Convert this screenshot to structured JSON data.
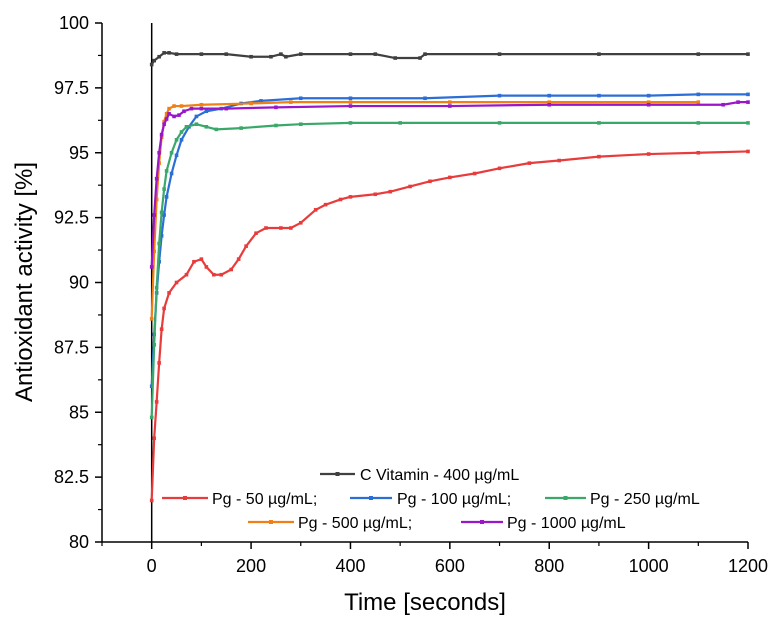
{
  "chart_data": {
    "type": "line",
    "title": "",
    "xlabel": "Time [seconds]",
    "ylabel": "Antioxidant activity [%]",
    "xlim": [
      -100,
      1200
    ],
    "ylim": [
      80,
      100
    ],
    "x_ticks": [
      0,
      200,
      400,
      600,
      800,
      1000,
      1200
    ],
    "y_ticks": [
      80,
      82.5,
      85,
      87.5,
      90,
      92.5,
      95,
      97.5,
      100
    ],
    "x_tick_labels": [
      "0",
      "200",
      "400",
      "600",
      "800",
      "1000",
      "1200"
    ],
    "y_tick_labels": [
      "80",
      "82.5",
      "85",
      "87.5",
      "90",
      "92.5",
      "95",
      "97.5",
      "100"
    ],
    "grid": false,
    "legend_position": "bottom",
    "series": [
      {
        "name": "C Vitamin - 400 µg/mL",
        "color": "#404040",
        "points": [
          [
            0,
            98.4
          ],
          [
            5,
            98.55
          ],
          [
            15,
            98.7
          ],
          [
            25,
            98.85
          ],
          [
            35,
            98.85
          ],
          [
            50,
            98.8
          ],
          [
            100,
            98.8
          ],
          [
            150,
            98.8
          ],
          [
            200,
            98.7
          ],
          [
            240,
            98.7
          ],
          [
            260,
            98.8
          ],
          [
            270,
            98.7
          ],
          [
            300,
            98.8
          ],
          [
            400,
            98.8
          ],
          [
            450,
            98.8
          ],
          [
            490,
            98.65
          ],
          [
            540,
            98.65
          ],
          [
            550,
            98.8
          ],
          [
            700,
            98.8
          ],
          [
            900,
            98.8
          ],
          [
            1100,
            98.8
          ],
          [
            1200,
            98.8
          ]
        ]
      },
      {
        "name": "Pg - 50 µg/mL;",
        "color": "#e83c3c",
        "points": [
          [
            0,
            81.6
          ],
          [
            5,
            84
          ],
          [
            10,
            85.4
          ],
          [
            15,
            86.9
          ],
          [
            20,
            88.2
          ],
          [
            25,
            89.0
          ],
          [
            35,
            89.6
          ],
          [
            50,
            90.0
          ],
          [
            70,
            90.3
          ],
          [
            85,
            90.8
          ],
          [
            100,
            90.9
          ],
          [
            110,
            90.6
          ],
          [
            125,
            90.3
          ],
          [
            140,
            90.3
          ],
          [
            160,
            90.5
          ],
          [
            175,
            90.9
          ],
          [
            190,
            91.4
          ],
          [
            210,
            91.9
          ],
          [
            230,
            92.1
          ],
          [
            260,
            92.1
          ],
          [
            280,
            92.1
          ],
          [
            300,
            92.3
          ],
          [
            330,
            92.8
          ],
          [
            350,
            93.0
          ],
          [
            380,
            93.2
          ],
          [
            400,
            93.3
          ],
          [
            450,
            93.4
          ],
          [
            480,
            93.5
          ],
          [
            520,
            93.7
          ],
          [
            560,
            93.9
          ],
          [
            600,
            94.05
          ],
          [
            650,
            94.2
          ],
          [
            700,
            94.4
          ],
          [
            760,
            94.6
          ],
          [
            820,
            94.7
          ],
          [
            900,
            94.85
          ],
          [
            1000,
            94.95
          ],
          [
            1100,
            95.0
          ],
          [
            1200,
            95.05
          ]
        ]
      },
      {
        "name": "Pg - 100 µg/mL;",
        "color": "#2b6fd6",
        "points": [
          [
            0,
            86.0
          ],
          [
            5,
            88.0
          ],
          [
            10,
            89.6
          ],
          [
            15,
            90.8
          ],
          [
            20,
            91.8
          ],
          [
            25,
            92.6
          ],
          [
            30,
            93.3
          ],
          [
            40,
            94.2
          ],
          [
            50,
            94.9
          ],
          [
            60,
            95.5
          ],
          [
            75,
            96.0
          ],
          [
            90,
            96.4
          ],
          [
            110,
            96.6
          ],
          [
            140,
            96.7
          ],
          [
            180,
            96.9
          ],
          [
            220,
            97.0
          ],
          [
            300,
            97.1
          ],
          [
            400,
            97.1
          ],
          [
            550,
            97.1
          ],
          [
            700,
            97.2
          ],
          [
            800,
            97.2
          ],
          [
            900,
            97.2
          ],
          [
            1000,
            97.2
          ],
          [
            1100,
            97.25
          ],
          [
            1200,
            97.25
          ]
        ]
      },
      {
        "name": "Pg - 250 µg/mL",
        "color": "#3aa86a",
        "points": [
          [
            0,
            84.8
          ],
          [
            5,
            87.6
          ],
          [
            10,
            89.8
          ],
          [
            15,
            91.5
          ],
          [
            20,
            92.7
          ],
          [
            25,
            93.6
          ],
          [
            30,
            94.3
          ],
          [
            40,
            95.0
          ],
          [
            50,
            95.5
          ],
          [
            60,
            95.8
          ],
          [
            70,
            96.0
          ],
          [
            90,
            96.1
          ],
          [
            110,
            96.0
          ],
          [
            130,
            95.9
          ],
          [
            180,
            95.95
          ],
          [
            250,
            96.05
          ],
          [
            300,
            96.1
          ],
          [
            400,
            96.15
          ],
          [
            500,
            96.15
          ],
          [
            700,
            96.15
          ],
          [
            900,
            96.15
          ],
          [
            1100,
            96.15
          ],
          [
            1200,
            96.15
          ]
        ]
      },
      {
        "name": "Pg - 500 µg/mL;",
        "color": "#f07f16",
        "points": [
          [
            0,
            88.6
          ],
          [
            5,
            91.2
          ],
          [
            10,
            93.2
          ],
          [
            15,
            94.6
          ],
          [
            20,
            95.6
          ],
          [
            25,
            96.2
          ],
          [
            30,
            96.5
          ],
          [
            35,
            96.7
          ],
          [
            45,
            96.8
          ],
          [
            60,
            96.8
          ],
          [
            100,
            96.85
          ],
          [
            200,
            96.9
          ],
          [
            280,
            96.95
          ],
          [
            400,
            96.95
          ],
          [
            600,
            96.95
          ],
          [
            800,
            96.95
          ],
          [
            1000,
            96.95
          ],
          [
            1100,
            96.95
          ]
        ]
      },
      {
        "name": "Pg - 1000 µg/mL",
        "color": "#9a16c9",
        "points": [
          [
            0,
            90.6
          ],
          [
            5,
            92.6
          ],
          [
            10,
            94.0
          ],
          [
            15,
            95.0
          ],
          [
            20,
            95.7
          ],
          [
            25,
            96.1
          ],
          [
            30,
            96.3
          ],
          [
            35,
            96.5
          ],
          [
            45,
            96.4
          ],
          [
            55,
            96.45
          ],
          [
            65,
            96.6
          ],
          [
            80,
            96.7
          ],
          [
            100,
            96.7
          ],
          [
            150,
            96.7
          ],
          [
            250,
            96.75
          ],
          [
            400,
            96.8
          ],
          [
            600,
            96.8
          ],
          [
            800,
            96.85
          ],
          [
            1000,
            96.85
          ],
          [
            1150,
            96.85
          ],
          [
            1180,
            96.95
          ],
          [
            1200,
            96.95
          ]
        ]
      }
    ]
  }
}
